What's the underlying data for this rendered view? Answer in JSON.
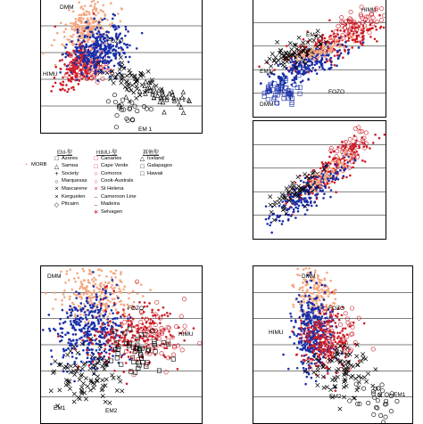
{
  "colors": {
    "mid_ocean": "#f4a882",
    "em_type": "#000000",
    "himu_type": "#cc1f2a",
    "other": "#1a2fa8"
  },
  "legend": {
    "header_em": "EM-型",
    "header_himu": "HIMU-型",
    "header_other": "其他型",
    "morb": "MORB",
    "em_items": [
      {
        "label": "Azores",
        "icon": "square-open"
      },
      {
        "label": "Samoa",
        "icon": "triangle-open"
      },
      {
        "label": "Society",
        "icon": "plus"
      },
      {
        "label": "Marquesas",
        "icon": "circle-open"
      },
      {
        "label": "Mascarene",
        "icon": "cross"
      },
      {
        "label": "Kerguelen",
        "icon": "cross"
      },
      {
        "label": "Pitcairn",
        "icon": "diamond-open"
      }
    ],
    "himu_items": [
      {
        "label": "Canaries",
        "icon": "square-open"
      },
      {
        "label": "Cape Verde",
        "icon": "square-open"
      },
      {
        "label": "Comoros",
        "icon": "circle-open"
      },
      {
        "label": "Cook-Australs",
        "icon": "circle-open"
      },
      {
        "label": "St Helena",
        "icon": "cross"
      },
      {
        "label": "Cameroon Line",
        "icon": "dash"
      },
      {
        "label": "Madeira",
        "icon": "dash"
      },
      {
        "label": "Selvagen",
        "icon": "asterisk"
      }
    ],
    "other_items": [
      {
        "label": "Iceland",
        "icon": "triangle-open"
      },
      {
        "label": "Galapagos",
        "icon": "square-open"
      },
      {
        "label": "Hawaii",
        "icon": "square-open"
      }
    ]
  },
  "chart_data": [
    {
      "type": "scatter",
      "panel": "top-left",
      "annotations": [
        "DMM",
        "FOZO",
        "HIMU",
        "EM 2",
        "EM 1"
      ]
    },
    {
      "type": "scatter",
      "panel": "top-right",
      "annotations": [
        "HIMU",
        "EM2",
        "EM1",
        "FOZO",
        "DMM"
      ]
    },
    {
      "type": "scatter",
      "panel": "middle-right",
      "annotations": []
    },
    {
      "type": "scatter",
      "panel": "bottom-left",
      "annotations": [
        "DMM",
        "FOZO",
        "HIMU",
        "EM1",
        "EM2"
      ]
    },
    {
      "type": "scatter",
      "panel": "bottom-right",
      "annotations": [
        "DMM",
        "FOZO",
        "HIMU",
        "EM2",
        "EM1"
      ]
    }
  ]
}
